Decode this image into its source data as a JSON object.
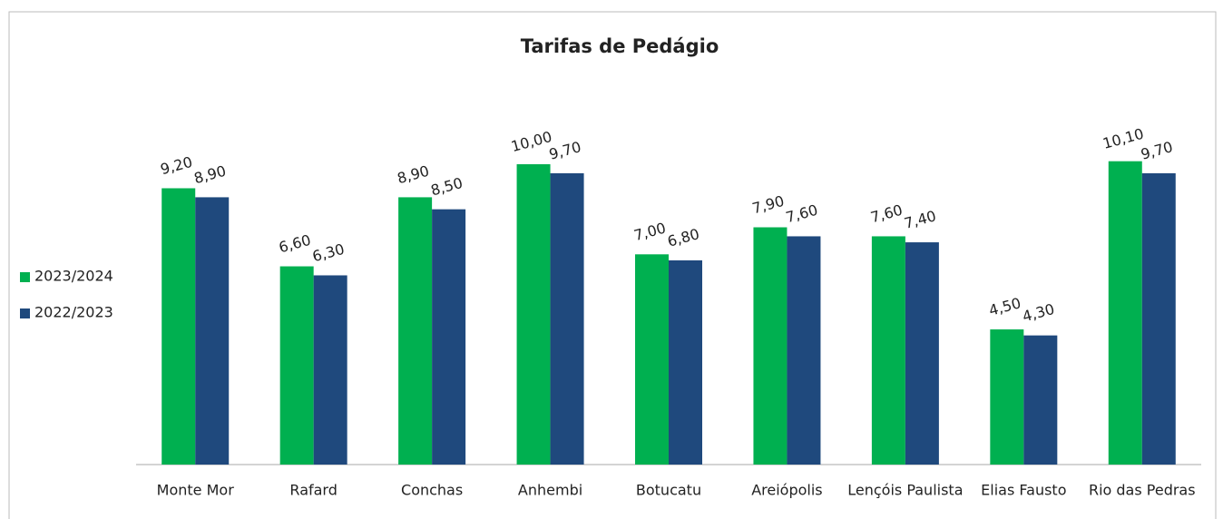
{
  "chart_data": {
    "type": "bar",
    "title": "Tarifas de Pedágio",
    "categories": [
      "Monte Mor",
      "Rafard",
      "Conchas",
      "Anhembi",
      "Botucatu",
      "Areiópolis",
      "Lençóis Paulista",
      "Elias Fausto",
      "Rio das Pedras"
    ],
    "series": [
      {
        "name": "2023/2024",
        "color": "#00b050",
        "values": [
          9.2,
          6.6,
          8.9,
          10.0,
          7.0,
          7.9,
          7.6,
          4.5,
          10.1
        ],
        "value_labels": [
          "9,20",
          "6,60",
          "8,90",
          "10,00",
          "7,00",
          "7,90",
          "7,60",
          "4,50",
          "10,10"
        ]
      },
      {
        "name": "2022/2023",
        "color": "#1f497d",
        "values": [
          8.9,
          6.3,
          8.5,
          9.7,
          6.8,
          7.6,
          7.4,
          4.3,
          9.7
        ],
        "value_labels": [
          "8,90",
          "6,30",
          "8,50",
          "9,70",
          "6,80",
          "7,60",
          "7,40",
          "4,30",
          "9,70"
        ]
      }
    ],
    "ylim": [
      0,
      12
    ],
    "legend": "left"
  }
}
